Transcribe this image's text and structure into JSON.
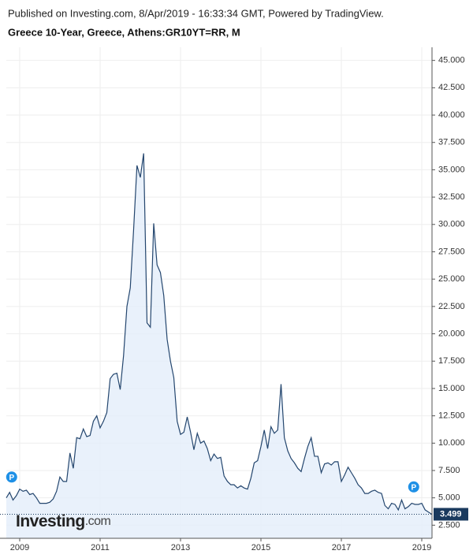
{
  "chart_data": {
    "type": "area",
    "published": "Published on Investing.com, 8/Apr/2019 - 16:33:34 GMT, Powered by TradingView.",
    "title": "Greece 10-Year, Greece, Athens:GR10YT=RR, M",
    "color": "#24466e",
    "fill": "#e3eefa",
    "grid": true,
    "x": [
      2008.667,
      2008.75,
      2008.833,
      2008.917,
      2009,
      2009.083,
      2009.167,
      2009.25,
      2009.333,
      2009.417,
      2009.5,
      2009.583,
      2009.667,
      2009.75,
      2009.833,
      2009.917,
      2010,
      2010.083,
      2010.167,
      2010.25,
      2010.333,
      2010.417,
      2010.5,
      2010.583,
      2010.667,
      2010.75,
      2010.833,
      2010.917,
      2011,
      2011.083,
      2011.167,
      2011.25,
      2011.333,
      2011.417,
      2011.5,
      2011.583,
      2011.667,
      2011.75,
      2011.833,
      2011.917,
      2012,
      2012.083,
      2012.167,
      2012.25,
      2012.333,
      2012.417,
      2012.5,
      2012.583,
      2012.667,
      2012.75,
      2012.833,
      2012.917,
      2013,
      2013.083,
      2013.167,
      2013.25,
      2013.333,
      2013.417,
      2013.5,
      2013.583,
      2013.667,
      2013.75,
      2013.833,
      2013.917,
      2014,
      2014.083,
      2014.167,
      2014.25,
      2014.333,
      2014.417,
      2014.5,
      2014.583,
      2014.667,
      2014.75,
      2014.833,
      2014.917,
      2015,
      2015.083,
      2015.167,
      2015.25,
      2015.333,
      2015.417,
      2015.5,
      2015.583,
      2015.667,
      2015.75,
      2015.833,
      2015.917,
      2016,
      2016.083,
      2016.167,
      2016.25,
      2016.333,
      2016.417,
      2016.5,
      2016.583,
      2016.667,
      2016.75,
      2016.833,
      2016.917,
      2017,
      2017.083,
      2017.167,
      2017.25,
      2017.333,
      2017.417,
      2017.5,
      2017.583,
      2017.667,
      2017.75,
      2017.833,
      2017.917,
      2018,
      2018.083,
      2018.167,
      2018.25,
      2018.333,
      2018.417,
      2018.5,
      2018.583,
      2018.667,
      2018.75,
      2018.833,
      2018.917,
      2019,
      2019.083,
      2019.167,
      2019.25
    ],
    "values": [
      5.0,
      5.5,
      4.8,
      5.2,
      5.8,
      5.6,
      5.7,
      5.3,
      5.4,
      5.0,
      4.5,
      4.5,
      4.5,
      4.6,
      4.9,
      5.6,
      6.9,
      6.5,
      6.5,
      9.1,
      7.7,
      10.5,
      10.4,
      11.3,
      10.6,
      10.7,
      12.0,
      12.5,
      11.4,
      12.0,
      12.8,
      15.9,
      16.3,
      16.4,
      14.9,
      18.0,
      22.5,
      24.2,
      29.5,
      35.4,
      34.3,
      36.5,
      21.0,
      20.6,
      30.1,
      26.3,
      25.6,
      23.5,
      19.5,
      17.5,
      16.0,
      12.0,
      10.8,
      11.0,
      12.4,
      11.0,
      9.4,
      10.9,
      10.0,
      10.2,
      9.5,
      8.4,
      9.0,
      8.6,
      8.7,
      7.0,
      6.5,
      6.2,
      6.2,
      5.9,
      6.1,
      5.9,
      5.8,
      6.8,
      8.2,
      8.4,
      9.7,
      11.2,
      9.5,
      11.5,
      10.9,
      11.2,
      15.4,
      10.5,
      9.3,
      8.6,
      8.2,
      7.7,
      7.4,
      8.6,
      9.7,
      10.5,
      8.8,
      8.8,
      7.3,
      8.1,
      8.2,
      8.0,
      8.3,
      8.3,
      6.5,
      7.1,
      7.8,
      7.3,
      6.8,
      6.2,
      5.9,
      5.4,
      5.4,
      5.6,
      5.7,
      5.5,
      5.4,
      4.3,
      4.0,
      4.5,
      4.4,
      3.9,
      4.8,
      4.0,
      4.2,
      4.5,
      4.4,
      4.4,
      4.5,
      3.9,
      3.7,
      3.499
    ],
    "xlim": [
      2008.667,
      2019.255
    ],
    "xticks": [
      2009,
      2011,
      2013,
      2015,
      2017,
      2019
    ],
    "ylim": [
      1.3,
      46.2
    ],
    "yticks": [
      {
        "value": 2.5,
        "label": "2.500"
      },
      {
        "value": 5,
        "label": "5.000"
      },
      {
        "value": 7.5,
        "label": "7.500"
      },
      {
        "value": 10,
        "label": "10.000"
      },
      {
        "value": 12.5,
        "label": "12.500"
      },
      {
        "value": 15,
        "label": "15.000"
      },
      {
        "value": 17.5,
        "label": "17.500"
      },
      {
        "value": 20,
        "label": "20.000"
      },
      {
        "value": 22.5,
        "label": "22.500"
      },
      {
        "value": 25,
        "label": "25.000"
      },
      {
        "value": 27.5,
        "label": "27.500"
      },
      {
        "value": 30,
        "label": "30.000"
      },
      {
        "value": 32.5,
        "label": "32.500"
      },
      {
        "value": 35,
        "label": "35.000"
      },
      {
        "value": 37.5,
        "label": "37.500"
      },
      {
        "value": 40,
        "label": "40.000"
      },
      {
        "value": 42.5,
        "label": "42.500"
      },
      {
        "value": 45,
        "label": "45.000"
      }
    ],
    "events": [
      {
        "label": "P",
        "x": 2008.8,
        "y": 6.9
      },
      {
        "label": "P",
        "x": 2018.8,
        "y": 6.0
      }
    ],
    "logo": {
      "name": "Investing",
      "suffix": ".com"
    }
  }
}
